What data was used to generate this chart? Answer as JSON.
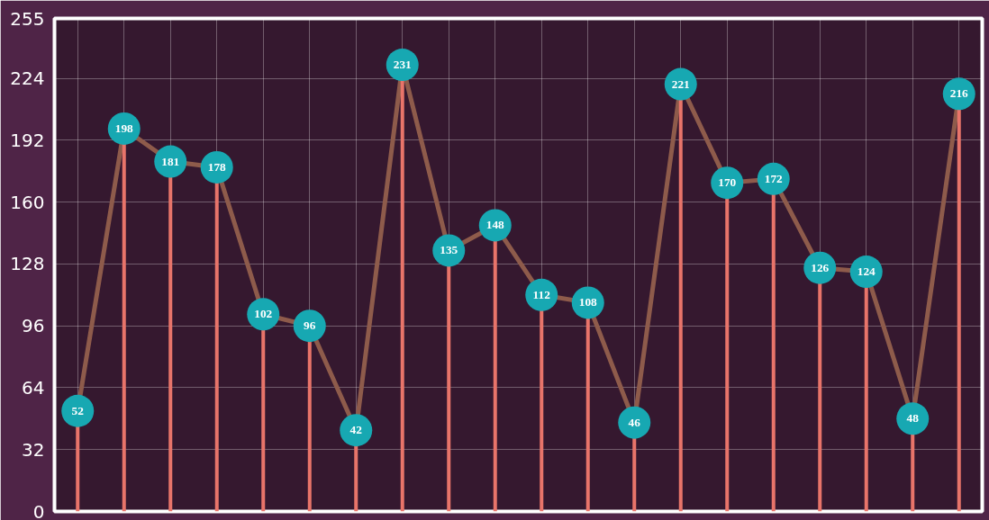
{
  "chart_data": {
    "type": "lollipop",
    "categories": [
      null,
      null,
      null,
      null,
      null,
      null,
      null,
      null,
      null,
      null,
      null,
      null,
      null,
      null,
      null,
      null,
      null,
      null,
      null,
      null
    ],
    "series": [
      {
        "type": "line",
        "color": "#8e5b4b",
        "values": [
          52,
          198,
          181,
          178,
          102,
          96,
          42,
          231,
          135,
          148,
          112,
          108,
          46,
          221,
          170,
          172,
          126,
          124,
          48,
          216
        ]
      },
      {
        "color": "#e8746a",
        "marker": "circle",
        "colors": [
          "#17a8b2",
          "#17a8b2",
          "#17a8b2",
          "#17a8b2",
          "#17a8b2",
          "#17a8b2",
          "#17a8b2",
          "#17a8b2",
          "#17a8b2",
          "#17a8b2",
          "#17a8b2",
          "#17a8b2",
          "#17a8b2",
          "#17a8b2",
          "#17a8b2",
          "#17a8b2",
          "#17a8b2",
          "#17a8b2",
          "#17a8b2",
          "#17a8b2"
        ],
        "values": [
          52,
          198,
          181,
          178,
          102,
          96,
          42,
          231,
          135,
          148,
          112,
          108,
          46,
          221,
          170,
          172,
          126,
          124,
          48,
          216
        ],
        "value_labels": [
          "52",
          "198",
          "181",
          "178",
          "102",
          "96",
          "42",
          "231",
          "135",
          "148",
          "112",
          "108",
          "46",
          "221",
          "170",
          "172",
          "126",
          "124",
          "48",
          "216"
        ]
      }
    ],
    "ylim": [
      0,
      255
    ],
    "yticks": [
      0,
      32,
      64,
      96,
      128,
      160,
      192,
      224,
      255
    ],
    "grid": true,
    "tick_labels": "y"
  }
}
